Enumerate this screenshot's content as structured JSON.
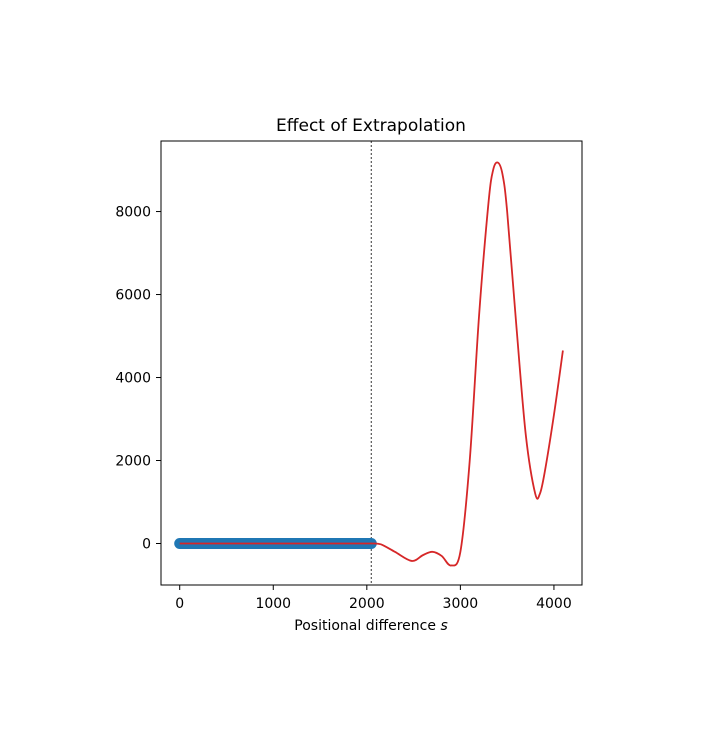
{
  "chart_data": {
    "type": "line",
    "title": "Effect of Extrapolation",
    "xlabel": "Positional difference",
    "xlabel_var": "s",
    "ylabel": "",
    "xlim": [
      -200,
      4300
    ],
    "ylim": [
      -1000,
      9700
    ],
    "x_ticks": [
      0,
      1000,
      2000,
      3000,
      4000
    ],
    "y_ticks": [
      0,
      2000,
      4000,
      6000,
      8000
    ],
    "grid": false,
    "vline": {
      "x": 2048,
      "style": "dotted",
      "color": "#555555"
    },
    "series": [
      {
        "style": "thick-line",
        "color": "#1f77b4",
        "x": [
          0,
          2048
        ],
        "y": [
          0,
          0
        ]
      },
      {
        "style": "line",
        "color": "#d62728",
        "x": [
          0,
          500,
          1000,
          1500,
          2000,
          2048,
          2150,
          2300,
          2480,
          2600,
          2700,
          2800,
          2900,
          3000,
          3100,
          3200,
          3300,
          3350,
          3400,
          3450,
          3500,
          3600,
          3700,
          3800,
          3850,
          3900,
          4000,
          4096
        ],
        "y": [
          0,
          0,
          0,
          0,
          0,
          0,
          -20,
          -200,
          -420,
          -280,
          -200,
          -300,
          -530,
          -200,
          2000,
          5500,
          8200,
          9000,
          9180,
          8900,
          8000,
          5200,
          2600,
          1200,
          1200,
          1700,
          3100,
          4650
        ]
      }
    ]
  }
}
